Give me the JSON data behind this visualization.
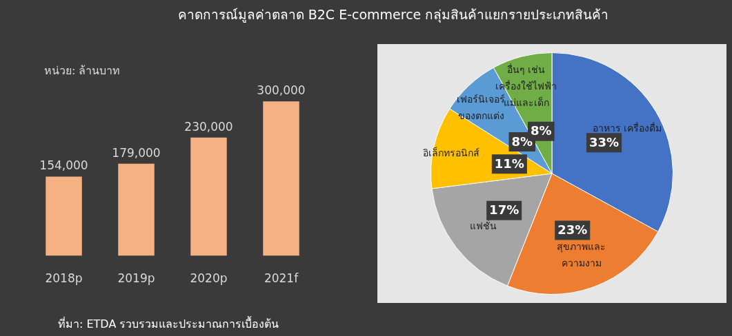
{
  "chart_data": [
    {
      "type": "bar",
      "title": "คาดการณ์มูลค่าตลาด B2C E-commerce กลุ่มสินค้าแยกรายประเภทสินค้า",
      "ylabel": "หน่วย: ล้านบาท",
      "categories": [
        "2018p",
        "2019p",
        "2020p",
        "2021f"
      ],
      "values": [
        154000,
        179000,
        230000,
        300000
      ],
      "color": "#f4b183",
      "value_labels": [
        "154,000",
        "179,000",
        "230,000",
        "300,000"
      ],
      "grid": false,
      "legend": false,
      "annotations": [
        "ที่มา: ETDA รวบรวมและประมาณการเบื้องต้น"
      ]
    },
    {
      "type": "pie",
      "categories": [
        "อาหาร เครื่องดื่ม",
        "สุขภาพและ\nความงาม",
        "แฟชั่น",
        "อิเล็กทรอนิกส์",
        "เฟอร์นิเจอร์\nของตกแต่ง",
        "อื่นๆ เช่น\nเครื่องใช้ไฟฟ้า\nแม่และเด็ก"
      ],
      "values": [
        33,
        23,
        17,
        11,
        8,
        8
      ],
      "colors": [
        "#4472c4",
        "#ed7d31",
        "#a5a5a5",
        "#ffc000",
        "#5b9bd5",
        "#70ad47"
      ],
      "value_labels": [
        "33%",
        "23%",
        "17%",
        "11%",
        "8%",
        "8%"
      ],
      "legend": false
    }
  ]
}
